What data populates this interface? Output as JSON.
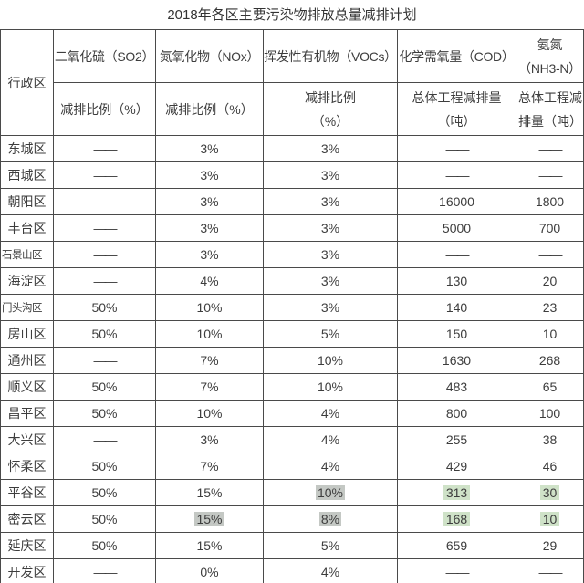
{
  "title": "2018年各区主要污染物排放总量减排计划",
  "colors": {
    "border": "#4a4a4a",
    "text": "#3d3d3d",
    "watermark_highlight_green": "#cfe2c8",
    "watermark_highlight_gray": "#c4c8c4"
  },
  "table": {
    "corner_header": "行政区",
    "column_groups": [
      {
        "name": "二氧化硫（SO2）",
        "sub": "减排比例（%）"
      },
      {
        "name": "氮氧化物（NOx）",
        "sub": "减排比例（%）"
      },
      {
        "name": "挥发性有机物（VOCs）",
        "sub": "减排比例\n（%）"
      },
      {
        "name": "化学需氧量（COD）",
        "sub": "总体工程减排量\n（吨）"
      },
      {
        "name": "氨氮\n（NH3-N）",
        "sub": "总体工程减\n排量（吨）"
      }
    ],
    "rows": [
      {
        "district": "东城区",
        "values": [
          "——",
          "3%",
          "3%",
          "——",
          "——"
        ]
      },
      {
        "district": "西城区",
        "values": [
          "——",
          "3%",
          "3%",
          "——",
          "——"
        ]
      },
      {
        "district": "朝阳区",
        "values": [
          "——",
          "3%",
          "3%",
          "16000",
          "1800"
        ]
      },
      {
        "district": "丰台区",
        "values": [
          "——",
          "3%",
          "3%",
          "5000",
          "700"
        ]
      },
      {
        "district": "石景山区",
        "values": [
          "——",
          "3%",
          "3%",
          "——",
          "——"
        ]
      },
      {
        "district": "海淀区",
        "values": [
          "——",
          "4%",
          "3%",
          "130",
          "20"
        ]
      },
      {
        "district": "门头沟区",
        "values": [
          "50%",
          "10%",
          "3%",
          "140",
          "23"
        ]
      },
      {
        "district": "房山区",
        "values": [
          "50%",
          "10%",
          "5%",
          "150",
          "10"
        ]
      },
      {
        "district": "通州区",
        "values": [
          "——",
          "7%",
          "10%",
          "1630",
          "268"
        ]
      },
      {
        "district": "顺义区",
        "values": [
          "50%",
          "7%",
          "10%",
          "483",
          "65"
        ]
      },
      {
        "district": "昌平区",
        "values": [
          "50%",
          "10%",
          "4%",
          "800",
          "100"
        ]
      },
      {
        "district": "大兴区",
        "values": [
          "——",
          "3%",
          "4%",
          "255",
          "38"
        ]
      },
      {
        "district": "怀柔区",
        "values": [
          "50%",
          "7%",
          "4%",
          "429",
          "46"
        ]
      },
      {
        "district": "平谷区",
        "values": [
          "50%",
          "15%",
          "10%",
          "313",
          "30"
        ],
        "highlights": [
          null,
          null,
          "gray",
          "green",
          "green"
        ]
      },
      {
        "district": "密云区",
        "values": [
          "50%",
          "15%",
          "8%",
          "168",
          "10"
        ],
        "highlights": [
          null,
          "gray",
          "gray",
          "green",
          "green"
        ]
      },
      {
        "district": "延庆区",
        "values": [
          "50%",
          "15%",
          "5%",
          "659",
          "29"
        ]
      },
      {
        "district": "开发区",
        "values": [
          "——",
          "0%",
          "4%",
          "——",
          "——"
        ]
      }
    ]
  }
}
